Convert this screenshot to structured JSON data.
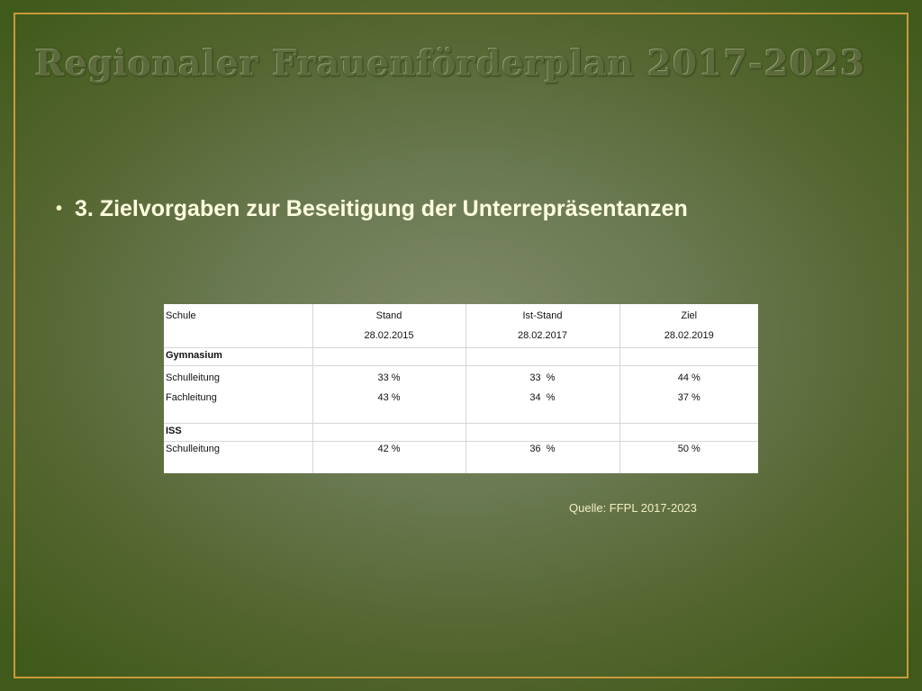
{
  "slide": {
    "title": "Regionaler Frauenförderplan 2017-2023",
    "bullet": "3. Zielvorgaben zur Beseitigung der Unterrepräsentanzen",
    "source": "Quelle: FFPL 2017-2023"
  },
  "table": {
    "headers": [
      {
        "line1": "Schule",
        "line2": ""
      },
      {
        "line1": "Stand",
        "line2": "28.02.2015"
      },
      {
        "line1": "Ist-Stand",
        "line2": "28.02.2017"
      },
      {
        "line1": "Ziel",
        "line2": "28.02.2019"
      }
    ],
    "group1": "Gymnasium",
    "gym_rows": [
      {
        "label": "Schulleitung",
        "stand": "33 %",
        "ist": "33  %",
        "ziel": "44 %"
      },
      {
        "label": "Fachleitung",
        "stand": "43 %",
        "ist": "34  %",
        "ziel": "37 %"
      }
    ],
    "group2": "ISS",
    "iss_rows": [
      {
        "label": "Schulleitung",
        "stand": "42 %",
        "ist": "36  %",
        "ziel": "50 %"
      }
    ]
  }
}
